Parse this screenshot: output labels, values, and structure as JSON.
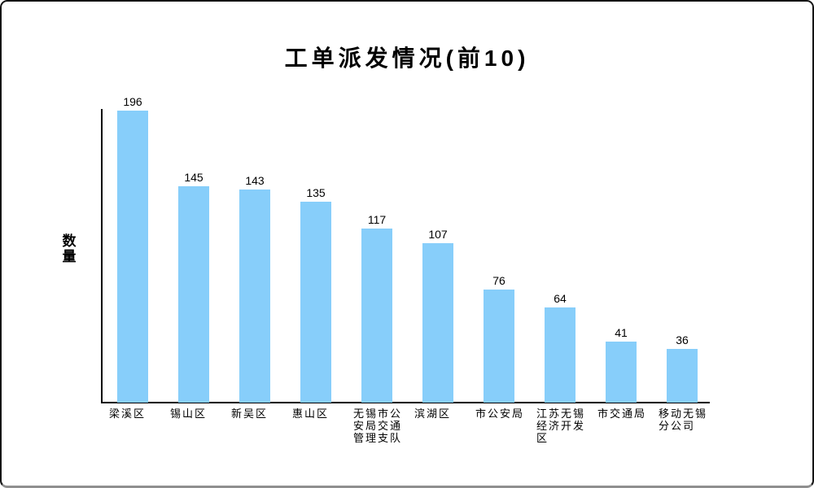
{
  "window": {
    "background_color": "#ffffff",
    "border_color": "#141414",
    "border_bottom_color": "#8f8f8f"
  },
  "chart_data": {
    "type": "bar",
    "title": "工单派发情况(前10)",
    "xlabel": "",
    "ylabel": "数量",
    "categories": [
      "梁溪区",
      "锡山区",
      "新吴区",
      "惠山区",
      "无锡市公安局交通管理支队",
      "滨湖区",
      "市公安局",
      "江苏无锡经济开发区",
      "市交通局",
      "移动无锡分公司"
    ],
    "values": [
      196,
      145,
      143,
      135,
      117,
      107,
      76,
      64,
      41,
      36
    ],
    "bar_color": "#87CEFA",
    "value_labels_shown": true,
    "ylim": [
      0,
      196
    ],
    "grid": false,
    "legend_position": "none",
    "axis_color": "#000000",
    "text_color": "#000000"
  }
}
